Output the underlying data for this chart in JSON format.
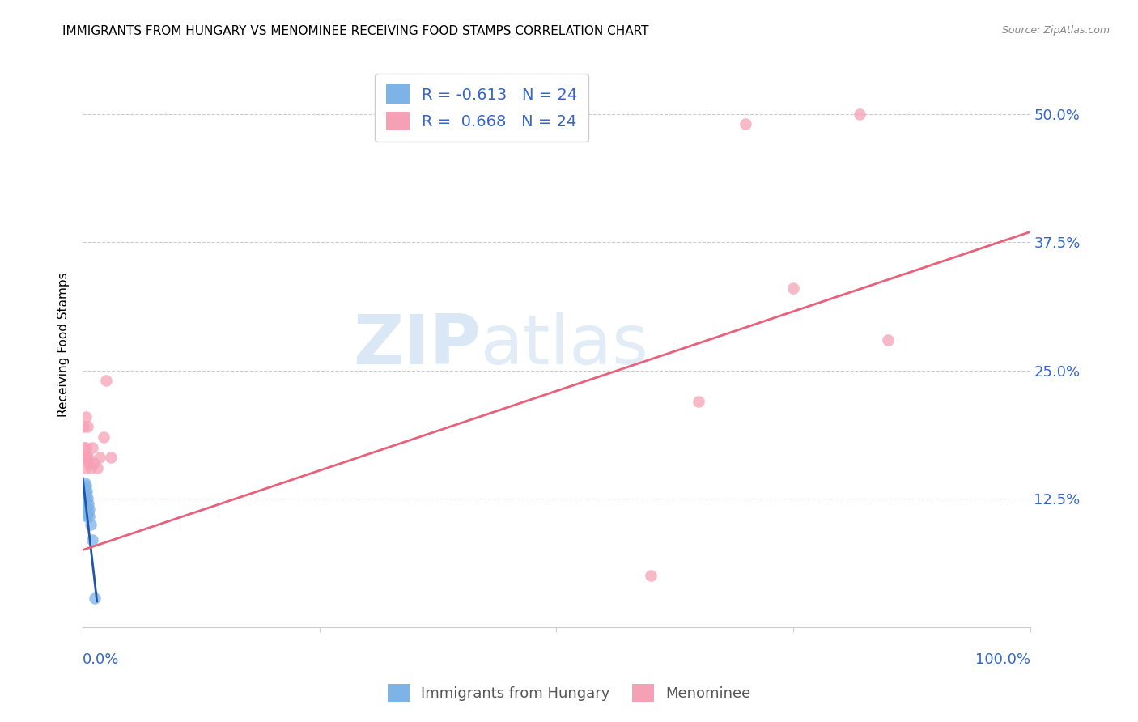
{
  "title": "IMMIGRANTS FROM HUNGARY VS MENOMINEE RECEIVING FOOD STAMPS CORRELATION CHART",
  "source": "Source: ZipAtlas.com",
  "ylabel": "Receiving Food Stamps",
  "ytick_values": [
    0.125,
    0.25,
    0.375,
    0.5
  ],
  "legend_entry1": "R = -0.613   N = 24",
  "legend_entry2": "R =  0.668   N = 24",
  "blue_color": "#7EB3E8",
  "pink_color": "#F5A0B5",
  "blue_line_color": "#2255AA",
  "pink_line_color": "#E8607A",
  "watermark_zip": "ZIP",
  "watermark_atlas": "atlas",
  "blue_scatter_x": [
    0.001,
    0.001,
    0.002,
    0.002,
    0.002,
    0.002,
    0.003,
    0.003,
    0.003,
    0.003,
    0.004,
    0.004,
    0.004,
    0.004,
    0.005,
    0.005,
    0.005,
    0.006,
    0.006,
    0.007,
    0.007,
    0.008,
    0.01,
    0.013
  ],
  "blue_scatter_y": [
    0.135,
    0.128,
    0.14,
    0.133,
    0.125,
    0.118,
    0.138,
    0.13,
    0.122,
    0.115,
    0.132,
    0.124,
    0.116,
    0.108,
    0.126,
    0.118,
    0.11,
    0.12,
    0.112,
    0.115,
    0.108,
    0.1,
    0.085,
    0.028
  ],
  "pink_scatter_x": [
    0.001,
    0.001,
    0.002,
    0.002,
    0.003,
    0.003,
    0.004,
    0.005,
    0.006,
    0.007,
    0.008,
    0.01,
    0.012,
    0.015,
    0.018,
    0.022,
    0.025,
    0.03,
    0.6,
    0.65,
    0.7,
    0.75,
    0.82,
    0.85
  ],
  "pink_scatter_y": [
    0.175,
    0.195,
    0.165,
    0.155,
    0.205,
    0.175,
    0.165,
    0.195,
    0.165,
    0.16,
    0.155,
    0.175,
    0.16,
    0.155,
    0.165,
    0.185,
    0.24,
    0.165,
    0.05,
    0.22,
    0.49,
    0.33,
    0.5,
    0.28
  ],
  "blue_line_x": [
    0.0,
    0.015
  ],
  "blue_line_y": [
    0.145,
    0.025
  ],
  "pink_line_x": [
    0.0,
    1.0
  ],
  "pink_line_y": [
    0.075,
    0.385
  ],
  "xlim": [
    0.0,
    1.0
  ],
  "ylim": [
    0.0,
    0.55
  ],
  "background_color": "#ffffff",
  "grid_color": "#cccccc",
  "title_fontsize": 11,
  "legend1_label": "Immigrants from Hungary",
  "legend2_label": "Menominee"
}
